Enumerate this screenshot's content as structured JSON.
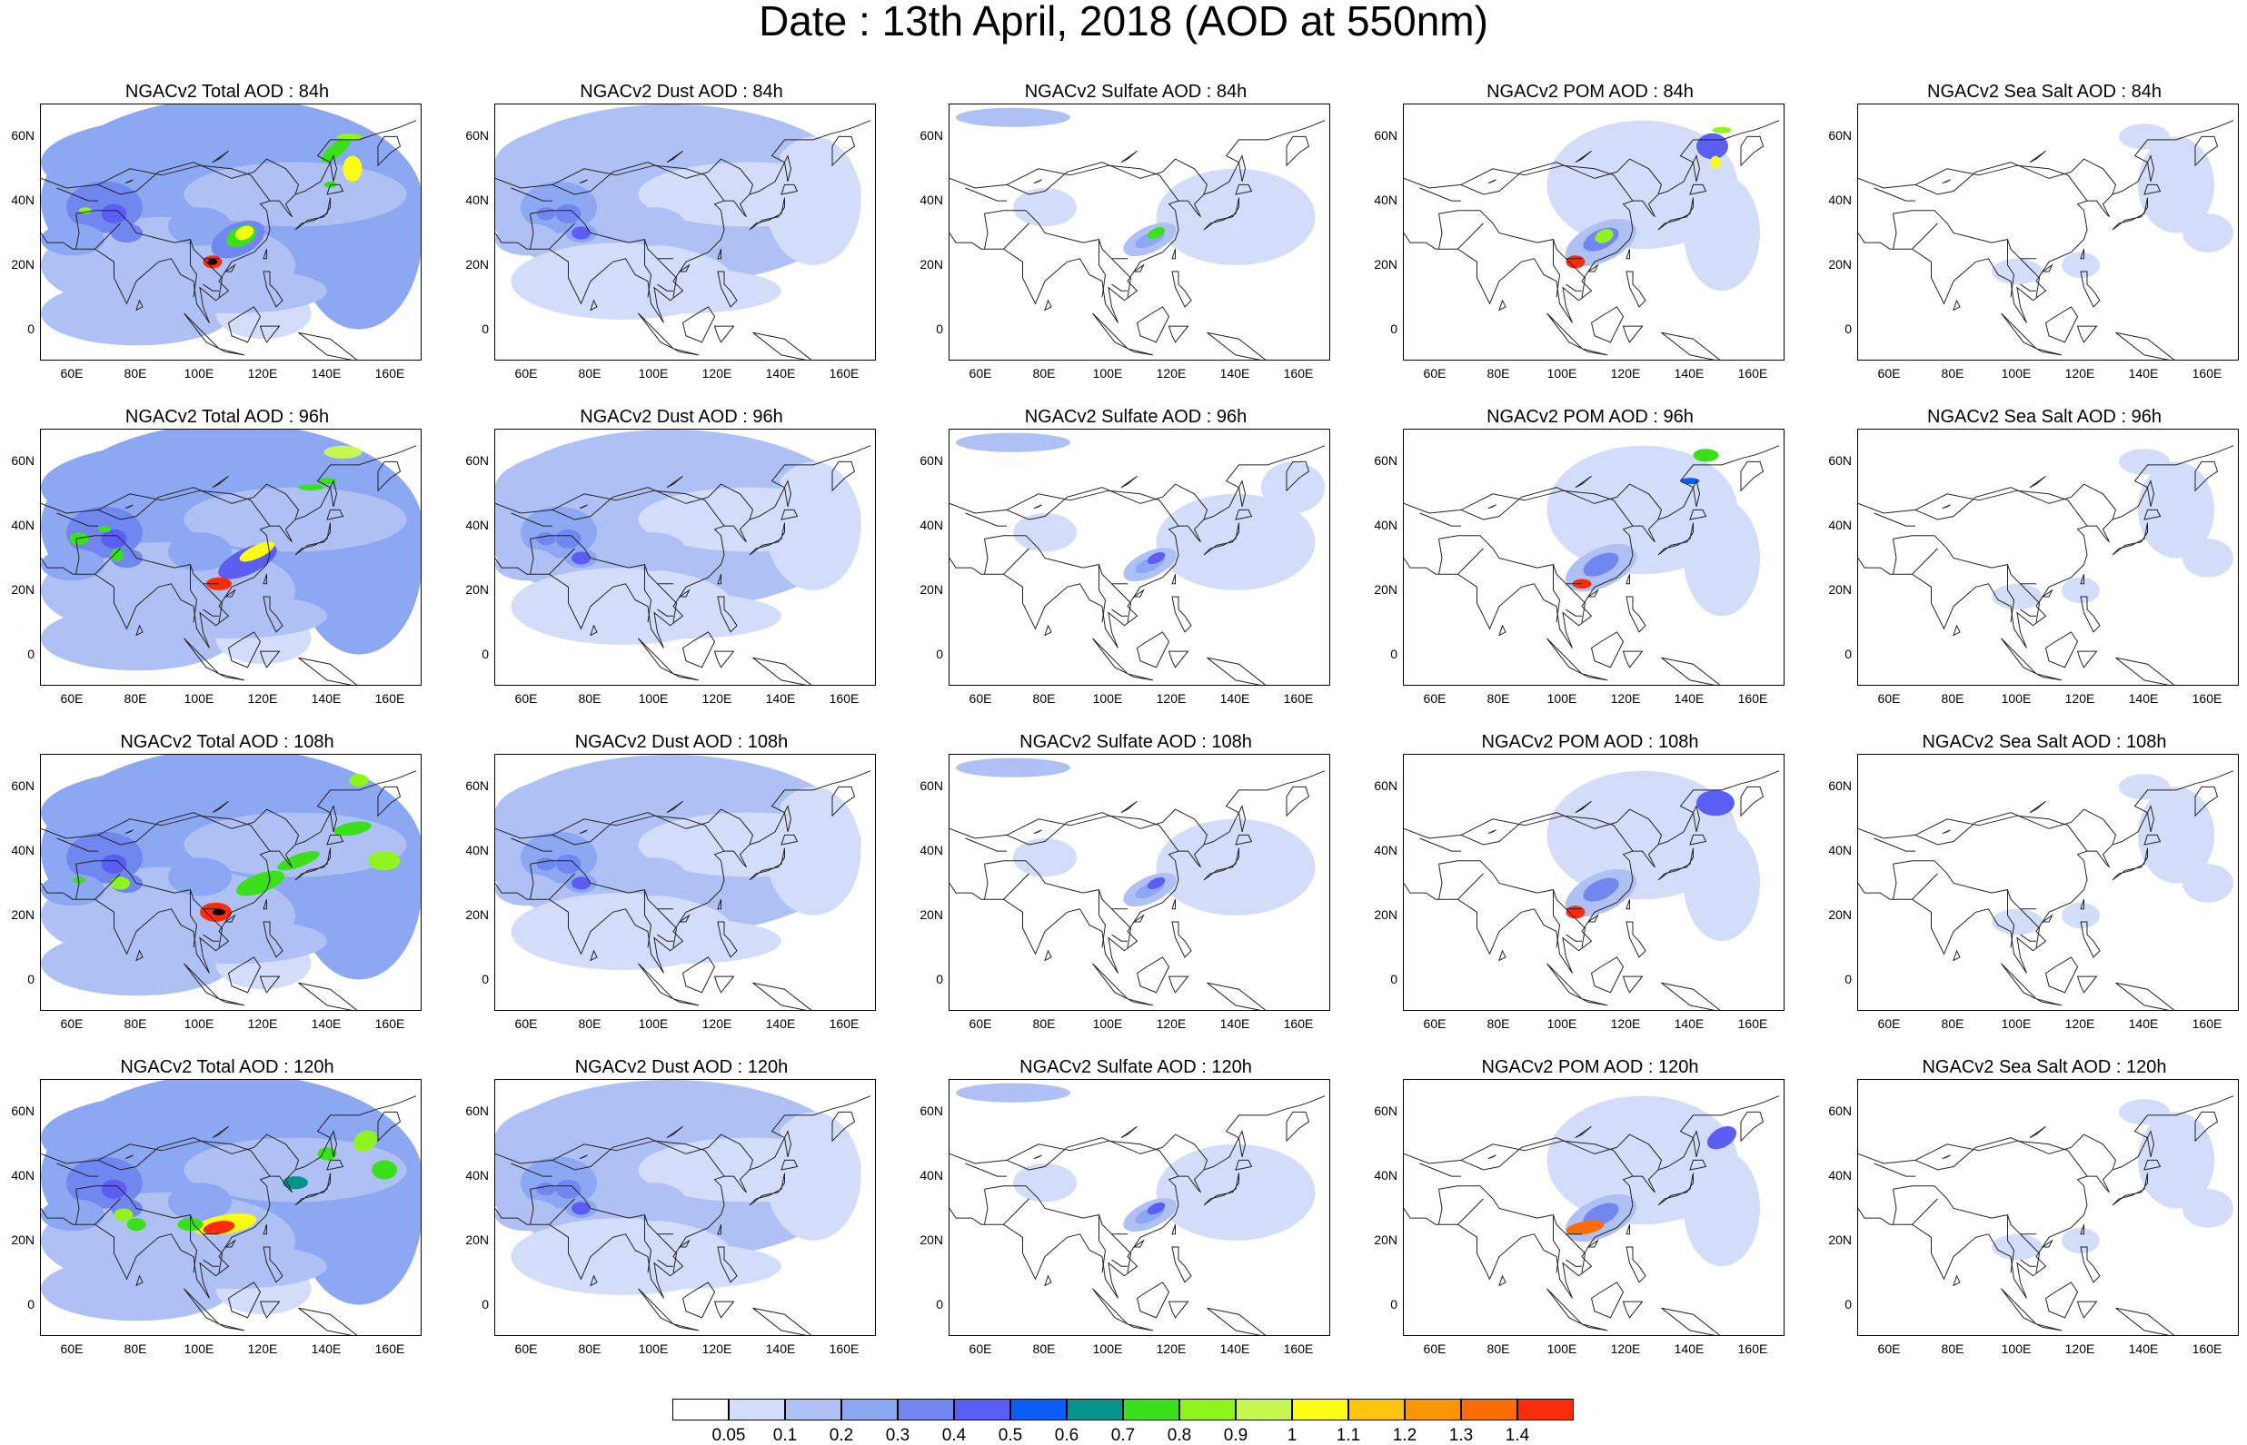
{
  "title": "Date : 13th April, 2018 (AOD at 550nm)",
  "lat_labels": [
    "60N",
    "40N",
    "20N",
    "0"
  ],
  "lon_labels": [
    "60E",
    "80E",
    "100E",
    "120E",
    "140E",
    "160E"
  ],
  "rows": [
    {
      "forecast_hour": "84h",
      "panels": [
        {
          "variable": "total",
          "title": "NGACv2 Total AOD : 84h"
        },
        {
          "variable": "dust",
          "title": "NGACv2 Dust AOD : 84h"
        },
        {
          "variable": "sulfate",
          "title": "NGACv2 Sulfate AOD : 84h"
        },
        {
          "variable": "pom",
          "title": "NGACv2 POM AOD : 84h"
        },
        {
          "variable": "seasalt",
          "title": "NGACv2 Sea Salt AOD : 84h"
        }
      ]
    },
    {
      "forecast_hour": "96h",
      "panels": [
        {
          "variable": "total",
          "title": "NGACv2 Total AOD : 96h"
        },
        {
          "variable": "dust",
          "title": "NGACv2 Dust AOD : 96h"
        },
        {
          "variable": "sulfate",
          "title": "NGACv2 Sulfate AOD : 96h"
        },
        {
          "variable": "pom",
          "title": "NGACv2 POM AOD : 96h"
        },
        {
          "variable": "seasalt",
          "title": "NGACv2 Sea Salt AOD : 96h"
        }
      ]
    },
    {
      "forecast_hour": "108h",
      "panels": [
        {
          "variable": "total",
          "title": "NGACv2 Total AOD : 108h"
        },
        {
          "variable": "dust",
          "title": "NGACv2 Dust AOD : 108h"
        },
        {
          "variable": "sulfate",
          "title": "NGACv2 Sulfate AOD : 108h"
        },
        {
          "variable": "pom",
          "title": "NGACv2 POM AOD : 108h"
        },
        {
          "variable": "seasalt",
          "title": "NGACv2 Sea Salt AOD : 108h"
        }
      ]
    },
    {
      "forecast_hour": "120h",
      "panels": [
        {
          "variable": "total",
          "title": "NGACv2 Total AOD : 120h"
        },
        {
          "variable": "dust",
          "title": "NGACv2 Dust AOD : 120h"
        },
        {
          "variable": "sulfate",
          "title": "NGACv2 Sulfate AOD : 120h"
        },
        {
          "variable": "pom",
          "title": "NGACv2 POM AOD : 120h"
        },
        {
          "variable": "seasalt",
          "title": "NGACv2 Sea Salt  AOD : 120h"
        }
      ]
    }
  ],
  "colorbar": {
    "labels": [
      "0.05",
      "0.1",
      "0.2",
      "0.3",
      "0.4",
      "0.5",
      "0.6",
      "0.7",
      "0.8",
      "0.9",
      "1",
      "1.1",
      "1.2",
      "1.3",
      "1.4"
    ],
    "colors": [
      "#ffffff",
      "#d3dcf8",
      "#afc1f4",
      "#8da8f2",
      "#7187f0",
      "#5b5ef2",
      "#0a5ef6",
      "#08928c",
      "#3ae01a",
      "#8ef41c",
      "#c6f850",
      "#fcfc14",
      "#fcc40a",
      "#fc9604",
      "#fc6c06",
      "#fc2c0a"
    ]
  }
}
